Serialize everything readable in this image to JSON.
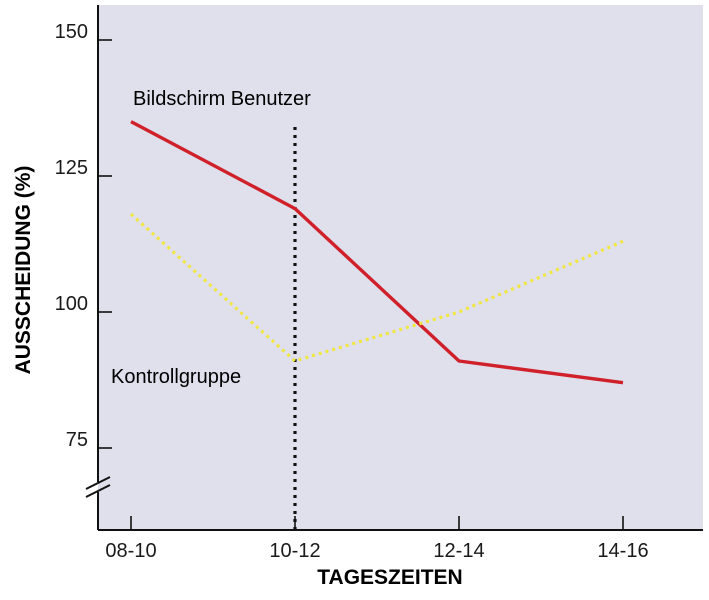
{
  "colors": {
    "plot_background": "#dfe0ec",
    "series_bildschirm": "#d0202a",
    "series_kontroll": "#f2e640",
    "vertical_marker": "#111111",
    "axis": "#111111"
  },
  "chart_data": {
    "type": "line",
    "categories": [
      "08-10",
      "10-12",
      "12-14",
      "14-16"
    ],
    "xlabel": "TAGESZEITEN",
    "ylabel": "AUSSCHEIDUNG (%)",
    "yticks": [
      75,
      100,
      125,
      150
    ],
    "ylim": [
      67,
      157
    ],
    "y_axis_break": true,
    "grid": false,
    "vertical_marker_at": "10-12",
    "series": [
      {
        "name": "Bildschirm Benutzer",
        "style": "solid",
        "values": [
          135,
          119,
          91,
          87
        ]
      },
      {
        "name": "Kontrollgruppe",
        "style": "dotted",
        "values": [
          118,
          91,
          100,
          113
        ]
      }
    ]
  }
}
